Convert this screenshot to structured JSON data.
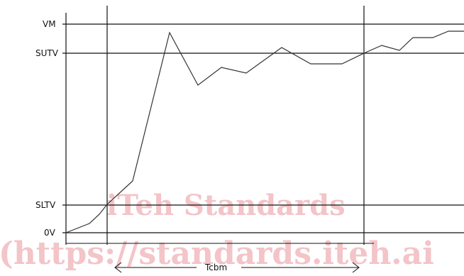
{
  "levels": {
    "vm": "VM",
    "sutv": "SUTV",
    "sltv": "SLTV",
    "zero": "0V"
  },
  "interval_label": "Tcbm",
  "watermark": {
    "line1": "iTeh Standards",
    "line2": "(https://standards.iteh.ai"
  },
  "colors": {
    "line": "#111111",
    "trace": "#333333",
    "watermark": "#f3c4c8"
  }
}
